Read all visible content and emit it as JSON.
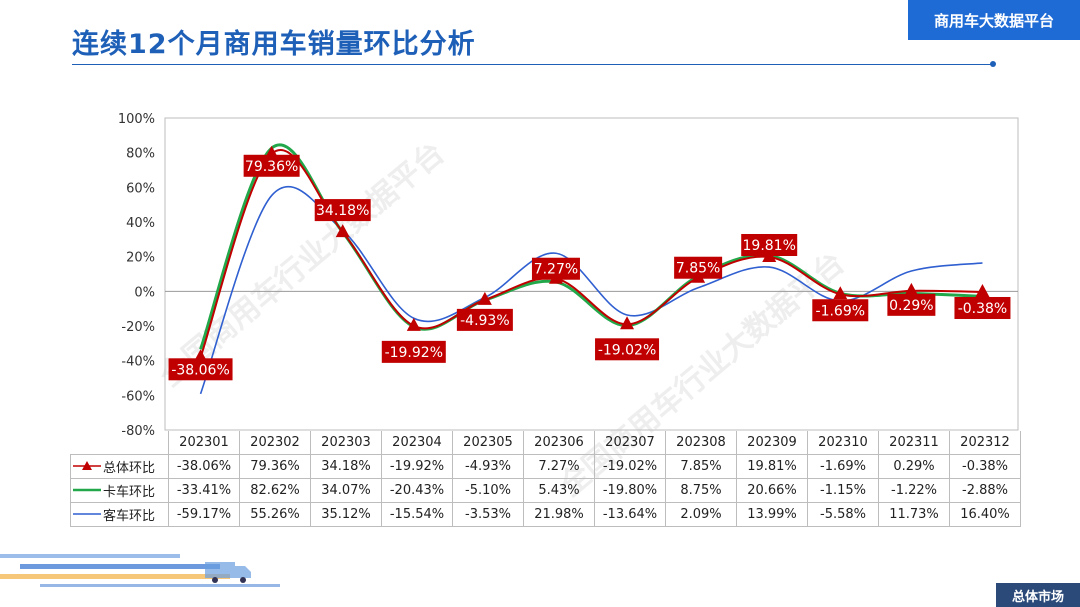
{
  "header": {
    "title": "连续12个月商用车销量环比分析",
    "brand": "商用车大数据平台"
  },
  "footer": {
    "section": "总体市场"
  },
  "watermark": {
    "text": "全国商用车行业大数据平台"
  },
  "colors": {
    "total": "#c00000",
    "truck": "#22a84a",
    "bus": "#2f5fd0",
    "label_bg": "#c00000",
    "accent": "#1e6bd6"
  },
  "chart_data": {
    "type": "line",
    "categories": [
      "202301",
      "202302",
      "202303",
      "202304",
      "202305",
      "202306",
      "202307",
      "202308",
      "202309",
      "202310",
      "202311",
      "202312"
    ],
    "ylim": [
      -80,
      100
    ],
    "yticks": [
      "100%",
      "80%",
      "60%",
      "40%",
      "20%",
      "0%",
      "-20%",
      "-40%",
      "-60%",
      "-80%"
    ],
    "series": [
      {
        "name": "总体环比",
        "values": [
          -38.06,
          79.36,
          34.18,
          -19.92,
          -4.93,
          7.27,
          -19.02,
          7.85,
          19.81,
          -1.69,
          0.29,
          -0.38
        ],
        "labels": [
          "-38.06%",
          "79.36%",
          "34.18%",
          "-19.92%",
          "-4.93%",
          "7.27%",
          "-19.02%",
          "7.85%",
          "19.81%",
          "-1.69%",
          "0.29%",
          "-0.38%"
        ]
      },
      {
        "name": "卡车环比",
        "values": [
          -33.41,
          82.62,
          34.07,
          -20.43,
          -5.1,
          5.43,
          -19.8,
          8.75,
          20.66,
          -1.15,
          -1.22,
          -2.88
        ],
        "labels": [
          "-33.41%",
          "82.62%",
          "34.07%",
          "-20.43%",
          "-5.10%",
          "5.43%",
          "-19.80%",
          "8.75%",
          "20.66%",
          "-1.15%",
          "-1.22%",
          "-2.88%"
        ]
      },
      {
        "name": "客车环比",
        "values": [
          -59.17,
          55.26,
          35.12,
          -15.54,
          -3.53,
          21.98,
          -13.64,
          2.09,
          13.99,
          -5.58,
          11.73,
          16.4
        ],
        "labels": [
          "-59.17%",
          "55.26%",
          "35.12%",
          "-15.54%",
          "-3.53%",
          "21.98%",
          "-13.64%",
          "2.09%",
          "13.99%",
          "-5.58%",
          "11.73%",
          "16.40%"
        ]
      }
    ]
  }
}
